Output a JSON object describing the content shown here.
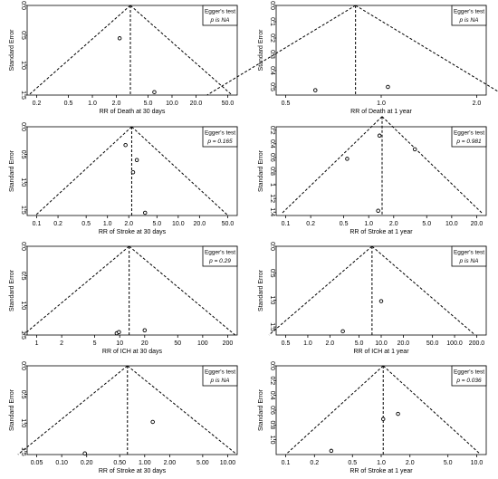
{
  "chart_data": [
    {
      "type": "scatter",
      "subtype": "funnel",
      "xlabel": "RR of Death at 30 days",
      "ylabel": "Standard Error",
      "x_scale": "log",
      "xticks": [
        "0.2",
        "0.5",
        "1.0",
        "2.0",
        "5.0",
        "10.0",
        "20.0",
        "50.0"
      ],
      "yticks": [
        "0.0",
        "0.5",
        "1.0",
        "1.5"
      ],
      "ylim": [
        0,
        1.5
      ],
      "legend": {
        "title": "Egger's test",
        "stat": "p is NA"
      },
      "points": [
        {
          "x": 2.2,
          "y": 0.55
        },
        {
          "x": 6.0,
          "y": 1.45
        }
      ],
      "pooled_estimate": 3.0,
      "funnel_se_max": 1.5
    },
    {
      "type": "scatter",
      "subtype": "funnel",
      "xlabel": "RR of Death at 1 year",
      "ylabel": "Standard Error",
      "x_scale": "log",
      "xticks": [
        "0.5",
        "1.0",
        "2.0"
      ],
      "yticks": [
        "0.0",
        "0.1",
        "0.2",
        "0.3",
        "0.4",
        "0.5"
      ],
      "ylim": [
        0,
        0.55
      ],
      "legend": {
        "title": "Egger's test",
        "stat": "p is NA"
      },
      "points": [
        {
          "x": 0.62,
          "y": 0.52
        },
        {
          "x": 1.05,
          "y": 0.5
        }
      ],
      "pooled_estimate": 0.83,
      "funnel_se_max": 0.55
    },
    {
      "type": "scatter",
      "subtype": "funnel",
      "xlabel": "RR of Stroke at 30 days",
      "ylabel": "Standard Error",
      "x_scale": "log",
      "xticks": [
        "0.1",
        "0.2",
        "0.5",
        "1.0",
        "2.0",
        "5.0",
        "10.0",
        "20.0",
        "50.0"
      ],
      "yticks": [
        "0.0",
        "0.5",
        "1.0",
        "1.5"
      ],
      "ylim": [
        0,
        1.6
      ],
      "legend": {
        "title": "Egger's test",
        "stat": "p = 0.165"
      },
      "points": [
        {
          "x": 1.8,
          "y": 0.33
        },
        {
          "x": 2.6,
          "y": 0.6
        },
        {
          "x": 2.3,
          "y": 0.82
        },
        {
          "x": 3.4,
          "y": 1.55
        }
      ],
      "pooled_estimate": 2.2,
      "funnel_se_max": 1.6
    },
    {
      "type": "scatter",
      "subtype": "funnel",
      "xlabel": "RR of Stroke at 1 year",
      "ylabel": "Standard Error",
      "x_scale": "log",
      "xticks": [
        "0.1",
        "0.2",
        "0.5",
        "1.0",
        "2.0",
        "5.0",
        "10.0",
        "20.0"
      ],
      "yticks": [
        "0.2",
        "0.4",
        "0.6",
        "0.8",
        "1",
        "1.2",
        "1.4"
      ],
      "ylim": [
        0.15,
        1.45
      ],
      "legend": {
        "title": "Egger's test",
        "stat": "p = 0.981"
      },
      "points": [
        {
          "x": 1.35,
          "y": 0.28
        },
        {
          "x": 3.6,
          "y": 0.48
        },
        {
          "x": 0.55,
          "y": 0.62
        },
        {
          "x": 1.3,
          "y": 1.38
        }
      ],
      "pooled_estimate": 1.45,
      "funnel_se_max": 1.41
    },
    {
      "type": "scatter",
      "subtype": "funnel",
      "xlabel": "RR of ICH at 30 days",
      "ylabel": "Standard Error",
      "x_scale": "log",
      "xticks": [
        "1",
        "2",
        "5",
        "10",
        "20",
        "50",
        "100",
        "200"
      ],
      "yticks": [
        "0.0",
        "0.5",
        "1.0",
        "1.5"
      ],
      "ylim": [
        0,
        1.5
      ],
      "legend": {
        "title": "Egger's test",
        "stat": "p = 0.29"
      },
      "points": [
        {
          "x": 9.2,
          "y": 1.47
        },
        {
          "x": 9.8,
          "y": 1.45
        },
        {
          "x": 20.0,
          "y": 1.42
        }
      ],
      "pooled_estimate": 13.0,
      "funnel_se_max": 1.5
    },
    {
      "type": "scatter",
      "subtype": "funnel",
      "xlabel": "RR of ICH at 1 year",
      "ylabel": "Standard Error",
      "x_scale": "log",
      "xticks": [
        "0.5",
        "1.0",
        "2.0",
        "5.0",
        "10.0",
        "20.0",
        "50.0",
        "100.0",
        "200.0"
      ],
      "yticks": [
        "0.0",
        "0.5",
        "1.0",
        "1.5"
      ],
      "ylim": [
        0,
        1.65
      ],
      "legend": {
        "title": "Egger's test",
        "stat": "p is NA"
      },
      "points": [
        {
          "x": 10.0,
          "y": 1.02
        },
        {
          "x": 3.0,
          "y": 1.58
        }
      ],
      "pooled_estimate": 7.5,
      "funnel_se_max": 1.65
    },
    {
      "type": "scatter",
      "subtype": "funnel",
      "xlabel": "RR of Stroke at 30 days",
      "ylabel": "Standard Error",
      "x_scale": "log",
      "xticks": [
        "0.05",
        "0.10",
        "0.20",
        "0.50",
        "1.00",
        "2.00",
        "5.00",
        "10.00"
      ],
      "yticks": [
        "0.0",
        "0.5",
        "1.0",
        "1.5"
      ],
      "ylim": [
        0,
        1.55
      ],
      "legend": {
        "title": "Egger's test",
        "stat": "p is NA"
      },
      "points": [
        {
          "x": 1.25,
          "y": 0.98
        },
        {
          "x": 0.19,
          "y": 1.53
        }
      ],
      "pooled_estimate": 0.62,
      "funnel_se_max": 1.55
    },
    {
      "type": "scatter",
      "subtype": "funnel",
      "xlabel": "RR of Stroke at 1 year",
      "ylabel": "Standard Error",
      "x_scale": "log",
      "xticks": [
        "0.1",
        "0.2",
        "0.5",
        "1.0",
        "2.0",
        "5.0",
        "10.0"
      ],
      "yticks": [
        "0.0",
        "0.2",
        "0.4",
        "0.6",
        "0.8",
        "1.0"
      ],
      "ylim": [
        0,
        1.2
      ],
      "legend": {
        "title": "Egger's test",
        "stat": "p = 0.036"
      },
      "points": [
        {
          "x": 1.05,
          "y": 0.72
        },
        {
          "x": 1.5,
          "y": 0.65
        },
        {
          "x": 0.3,
          "y": 1.15
        }
      ],
      "pooled_estimate": 1.05,
      "funnel_se_max": 1.18
    }
  ]
}
